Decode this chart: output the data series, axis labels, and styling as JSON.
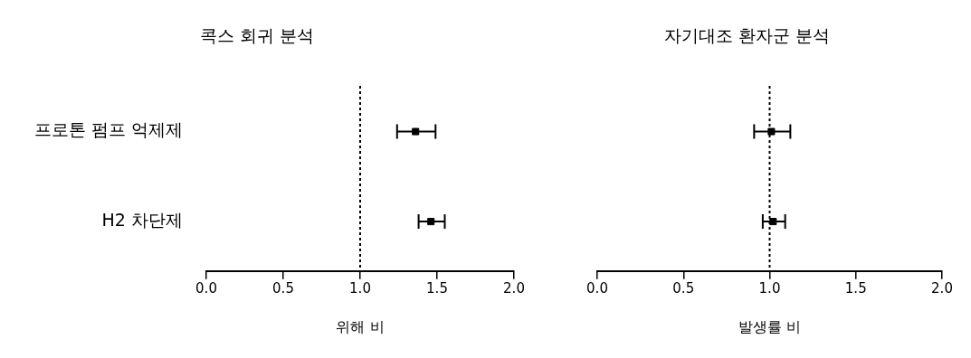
{
  "chart_data": [
    {
      "type": "scatter",
      "orientation": "horizontal",
      "title": "콕스 회귀 분석",
      "xlabel": "위해 비",
      "categories": [
        "프로톤 펌프 억제제",
        "H2 차단제"
      ],
      "values": [
        1.36,
        1.46
      ],
      "errors": [
        [
          1.24,
          1.49
        ],
        [
          1.38,
          1.55
        ]
      ],
      "color": "#000000",
      "marker": "square",
      "xlim": [
        0,
        2
      ],
      "xticks": [
        {
          "value": 0,
          "label": "0.0"
        },
        {
          "value": 0.5,
          "label": "0.5"
        },
        {
          "value": 1,
          "label": "1.0"
        },
        {
          "value": 1.5,
          "label": "1.5"
        },
        {
          "value": 2,
          "label": "2.0"
        }
      ],
      "grid": false,
      "ref_lines": [
        {
          "axis": "x",
          "value": 1,
          "line_style": "dashed"
        }
      ]
    },
    {
      "type": "scatter",
      "orientation": "horizontal",
      "title": "자기대조 환자군 분석",
      "xlabel": "발생률 비",
      "categories": [
        null,
        null
      ],
      "values": [
        1.01,
        1.02
      ],
      "errors": [
        [
          0.91,
          1.12
        ],
        [
          0.96,
          1.09
        ]
      ],
      "color": "#000000",
      "marker": "square",
      "xlim": [
        0,
        2
      ],
      "xticks": [
        {
          "value": 0,
          "label": "0.0"
        },
        {
          "value": 0.5,
          "label": "0.5"
        },
        {
          "value": 1,
          "label": "1.0"
        },
        {
          "value": 1.5,
          "label": "1.5"
        },
        {
          "value": 2,
          "label": "2.0"
        }
      ],
      "grid": false,
      "tick_labels": "x",
      "ref_lines": [
        {
          "axis": "x",
          "value": 1,
          "line_style": "dashed"
        }
      ]
    }
  ]
}
